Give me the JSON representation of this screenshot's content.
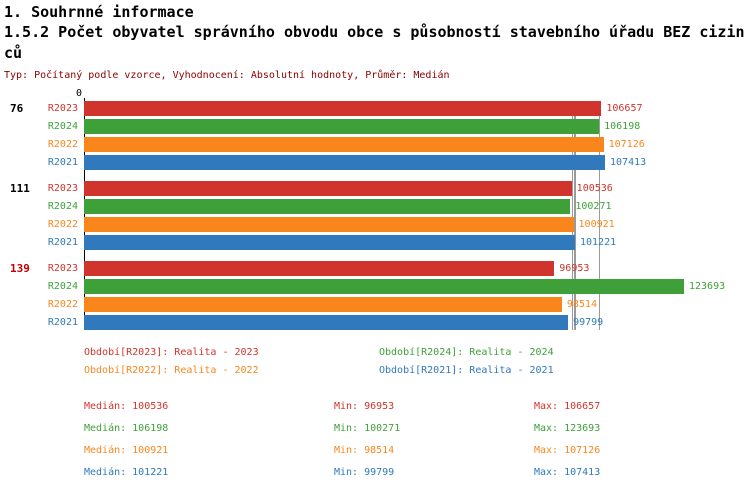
{
  "header": {
    "title": "1. Souhrnné informace",
    "subtitle": "1.5.2 Počet obyvatel správního obvodu obce s působností stavebního úřadu BEZ cizinců",
    "meta": "Typ: Počítaný podle vzorce, Vyhodnocení: Absolutní hodnoty, Průměr: Medián"
  },
  "chart_data": {
    "type": "bar",
    "orientation": "horizontal",
    "value_axis": {
      "zero_label": "0",
      "min": 0,
      "max": 123693
    },
    "series": [
      {
        "key": "R2023",
        "label": "R2023",
        "legend": "Období[R2023]: Realita - 2023",
        "color": "#d0342c"
      },
      {
        "key": "R2024",
        "label": "R2024",
        "legend": "Období[R2024]: Realita - 2024",
        "color": "#3fa039"
      },
      {
        "key": "R2022",
        "label": "R2022",
        "legend": "Období[R2022]: Realita - 2022",
        "color": "#f8861d"
      },
      {
        "key": "R2021",
        "label": "R2021",
        "legend": "Období[R2021]: Realita - 2021",
        "color": "#3079bd"
      }
    ],
    "groups": [
      {
        "label": "76",
        "label_color": "#000000",
        "values": [
          106657,
          106198,
          107126,
          107413
        ]
      },
      {
        "label": "111",
        "label_color": "#000000",
        "values": [
          100536,
          100271,
          100921,
          101221
        ]
      },
      {
        "label": "139",
        "label_color": "#c00000",
        "values": [
          96953,
          123693,
          98514,
          99799
        ]
      }
    ],
    "median_lines": [
      100536,
      106198,
      100921,
      101221
    ],
    "stats": {
      "labels": {
        "median": "Medián",
        "min": "Min",
        "max": "Max"
      },
      "rows": [
        {
          "series": "R2023",
          "median": 100536,
          "min": 96953,
          "max": 106657
        },
        {
          "series": "R2024",
          "median": 106198,
          "min": 100271,
          "max": 123693
        },
        {
          "series": "R2022",
          "median": 100921,
          "min": 98514,
          "max": 107126
        },
        {
          "series": "R2021",
          "median": 101221,
          "min": 99799,
          "max": 107413
        }
      ]
    }
  }
}
